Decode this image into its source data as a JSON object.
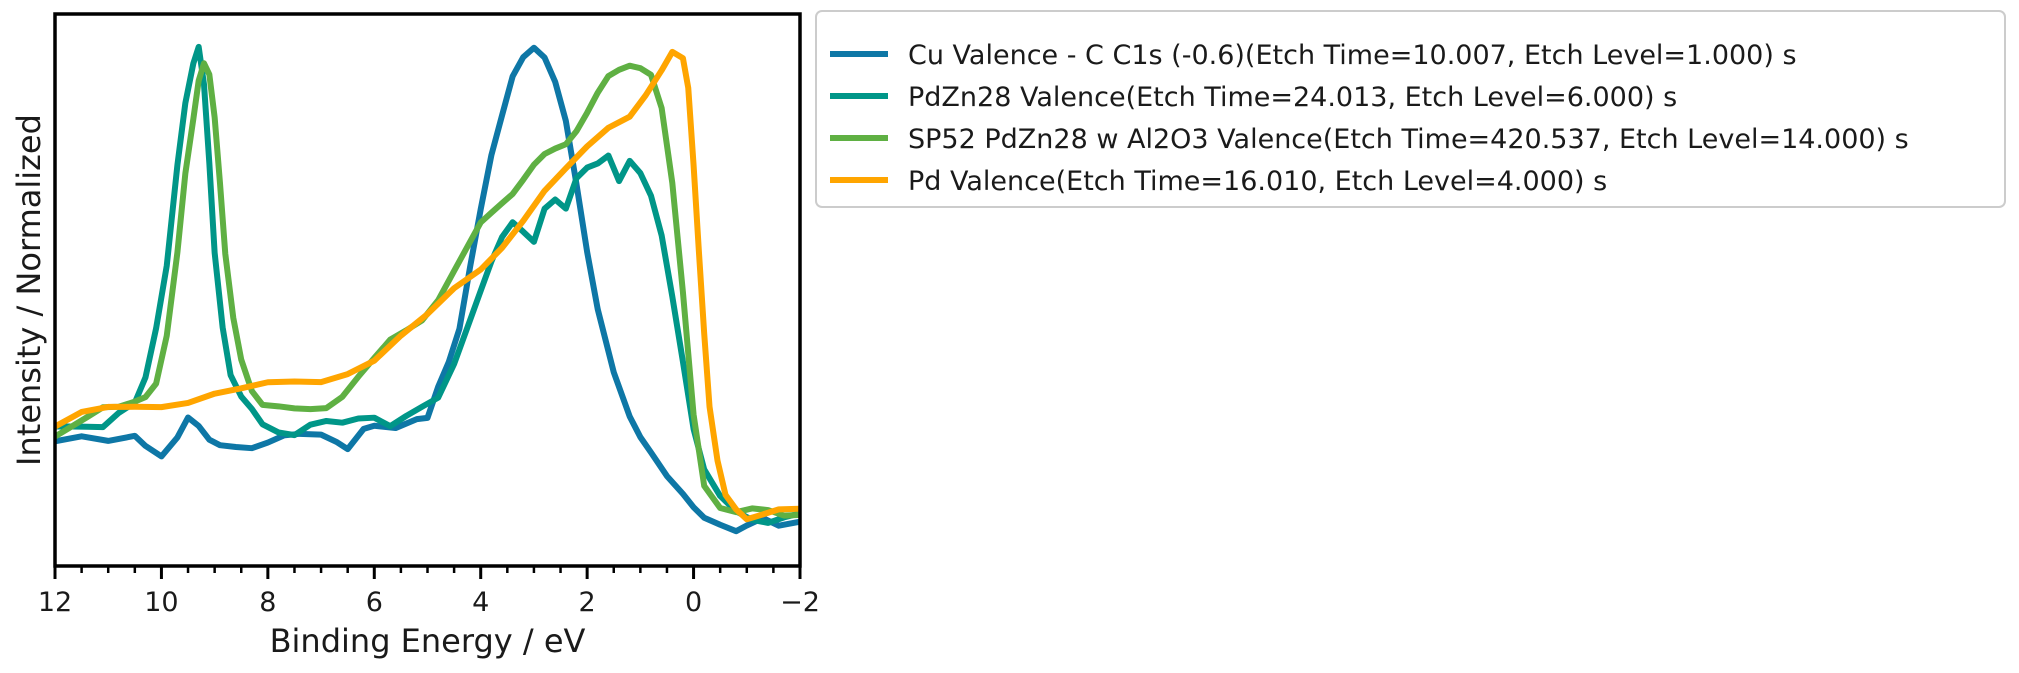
{
  "chart_data": {
    "type": "line",
    "title": "",
    "xlabel": "Binding Energy / eV",
    "ylabel": "Intensity / Normalized",
    "xlim": [
      12,
      -2
    ],
    "ylim": [
      0,
      1
    ],
    "x_ticks": [
      12,
      10,
      8,
      6,
      4,
      2,
      0,
      -2
    ],
    "x_tick_labels": [
      "12",
      "10",
      "8",
      "6",
      "4",
      "2",
      "0",
      "−2"
    ],
    "y_ticks_shown": false,
    "grid": false,
    "legend_position": "outside-right-top",
    "series": [
      {
        "name": "Cu Valence - C C1s (-0.6)(Etch Time=10.007, Etch Level=1.000) s",
        "color": "#0e77a6",
        "x": [
          12,
          11.5,
          11,
          10.5,
          10.3,
          10,
          9.7,
          9.5,
          9.3,
          9.1,
          8.9,
          8.6,
          8.3,
          8.0,
          7.7,
          7.4,
          7.0,
          6.7,
          6.5,
          6.2,
          6.0,
          5.6,
          5.2,
          5.0,
          4.8,
          4.6,
          4.4,
          4.2,
          4.0,
          3.8,
          3.6,
          3.4,
          3.2,
          3.0,
          2.8,
          2.6,
          2.4,
          2.2,
          2.0,
          1.8,
          1.5,
          1.2,
          1.0,
          0.8,
          0.5,
          0.2,
          0.0,
          -0.2,
          -0.5,
          -0.8,
          -1.0,
          -1.3,
          -1.6,
          -2.0
        ],
        "y": [
          0.2,
          0.2,
          0.19,
          0.21,
          0.2,
          0.18,
          0.21,
          0.24,
          0.22,
          0.2,
          0.2,
          0.2,
          0.19,
          0.19,
          0.2,
          0.21,
          0.22,
          0.21,
          0.19,
          0.22,
          0.22,
          0.22,
          0.25,
          0.26,
          0.32,
          0.36,
          0.42,
          0.55,
          0.68,
          0.8,
          0.88,
          0.95,
          0.98,
          1.0,
          0.99,
          0.95,
          0.87,
          0.73,
          0.58,
          0.46,
          0.34,
          0.26,
          0.22,
          0.18,
          0.12,
          0.08,
          0.06,
          0.05,
          0.04,
          0.02,
          0.02,
          0.03,
          0.02,
          0.04
        ]
      },
      {
        "name": "PdZn28 Valence(Etch Time=24.013, Etch Level=6.000) s",
        "color": "#009688",
        "x": [
          12,
          11.7,
          11.4,
          11.1,
          10.8,
          10.5,
          10.3,
          10.1,
          9.9,
          9.7,
          9.55,
          9.4,
          9.3,
          9.2,
          9.1,
          9.0,
          8.85,
          8.7,
          8.5,
          8.3,
          8.1,
          7.8,
          7.5,
          7.2,
          6.9,
          6.6,
          6.3,
          6.0,
          5.7,
          5.4,
          5.1,
          4.8,
          4.5,
          4.2,
          4.0,
          3.8,
          3.6,
          3.4,
          3.2,
          3.0,
          2.8,
          2.6,
          2.4,
          2.2,
          2.0,
          1.8,
          1.6,
          1.4,
          1.2,
          1.0,
          0.8,
          0.6,
          0.4,
          0.2,
          0.0,
          -0.2,
          -0.5,
          -0.8,
          -1.1,
          -1.4,
          -1.7,
          -2.0
        ],
        "y": [
          0.22,
          0.23,
          0.24,
          0.24,
          0.26,
          0.27,
          0.32,
          0.43,
          0.57,
          0.78,
          0.9,
          0.97,
          1.0,
          0.93,
          0.78,
          0.6,
          0.44,
          0.33,
          0.28,
          0.26,
          0.24,
          0.23,
          0.22,
          0.23,
          0.23,
          0.23,
          0.25,
          0.26,
          0.24,
          0.25,
          0.26,
          0.28,
          0.36,
          0.46,
          0.52,
          0.57,
          0.61,
          0.64,
          0.63,
          0.62,
          0.69,
          0.7,
          0.67,
          0.73,
          0.76,
          0.78,
          0.8,
          0.74,
          0.77,
          0.74,
          0.7,
          0.63,
          0.51,
          0.37,
          0.22,
          0.13,
          0.08,
          0.06,
          0.05,
          0.04,
          0.04,
          0.04
        ]
      },
      {
        "name": "SP52 PdZn28 w Al2O3 Valence(Etch Time=420.537, Etch Level=14.000) s",
        "color": "#5fb043",
        "x": [
          12,
          11.7,
          11.4,
          11.1,
          10.8,
          10.5,
          10.3,
          10.1,
          9.9,
          9.7,
          9.55,
          9.4,
          9.3,
          9.2,
          9.1,
          9.0,
          8.9,
          8.8,
          8.65,
          8.5,
          8.3,
          8.1,
          7.8,
          7.5,
          7.2,
          6.9,
          6.6,
          6.3,
          6.0,
          5.7,
          5.4,
          5.1,
          4.8,
          4.5,
          4.2,
          4.0,
          3.8,
          3.6,
          3.4,
          3.2,
          3.0,
          2.8,
          2.6,
          2.4,
          2.2,
          2.0,
          1.8,
          1.6,
          1.4,
          1.2,
          1.0,
          0.8,
          0.6,
          0.4,
          0.2,
          0.0,
          -0.2,
          -0.5,
          -0.8,
          -1.1,
          -1.4,
          -1.7,
          -2.0
        ],
        "y": [
          0.22,
          0.24,
          0.25,
          0.26,
          0.26,
          0.28,
          0.3,
          0.33,
          0.42,
          0.58,
          0.74,
          0.86,
          0.95,
          0.99,
          0.96,
          0.86,
          0.72,
          0.58,
          0.46,
          0.38,
          0.31,
          0.27,
          0.26,
          0.26,
          0.27,
          0.28,
          0.3,
          0.33,
          0.36,
          0.4,
          0.43,
          0.46,
          0.5,
          0.55,
          0.6,
          0.64,
          0.67,
          0.7,
          0.72,
          0.74,
          0.76,
          0.78,
          0.8,
          0.82,
          0.85,
          0.88,
          0.91,
          0.94,
          0.96,
          0.98,
          0.98,
          0.96,
          0.88,
          0.72,
          0.5,
          0.26,
          0.12,
          0.07,
          0.05,
          0.05,
          0.05,
          0.05,
          0.06
        ]
      },
      {
        "name": "Pd Valence(Etch Time=16.010, Etch Level=4.000) s",
        "color": "#ffa500",
        "x": [
          12,
          11.5,
          11,
          10.5,
          10,
          9.5,
          9.0,
          8.5,
          8.0,
          7.5,
          7.0,
          6.5,
          6.0,
          5.5,
          5.0,
          4.5,
          4.0,
          3.6,
          3.2,
          2.8,
          2.4,
          2.0,
          1.6,
          1.2,
          0.9,
          0.6,
          0.4,
          0.2,
          0.1,
          0.0,
          -0.1,
          -0.2,
          -0.3,
          -0.45,
          -0.6,
          -0.8,
          -1.0,
          -1.3,
          -1.6,
          -2.0
        ],
        "y": [
          0.23,
          0.25,
          0.26,
          0.27,
          0.28,
          0.29,
          0.3,
          0.3,
          0.31,
          0.32,
          0.33,
          0.35,
          0.37,
          0.41,
          0.45,
          0.51,
          0.56,
          0.61,
          0.66,
          0.71,
          0.75,
          0.8,
          0.85,
          0.88,
          0.92,
          0.96,
          0.99,
          0.98,
          0.93,
          0.78,
          0.6,
          0.42,
          0.26,
          0.15,
          0.09,
          0.07,
          0.05,
          0.05,
          0.05,
          0.05
        ]
      }
    ]
  }
}
